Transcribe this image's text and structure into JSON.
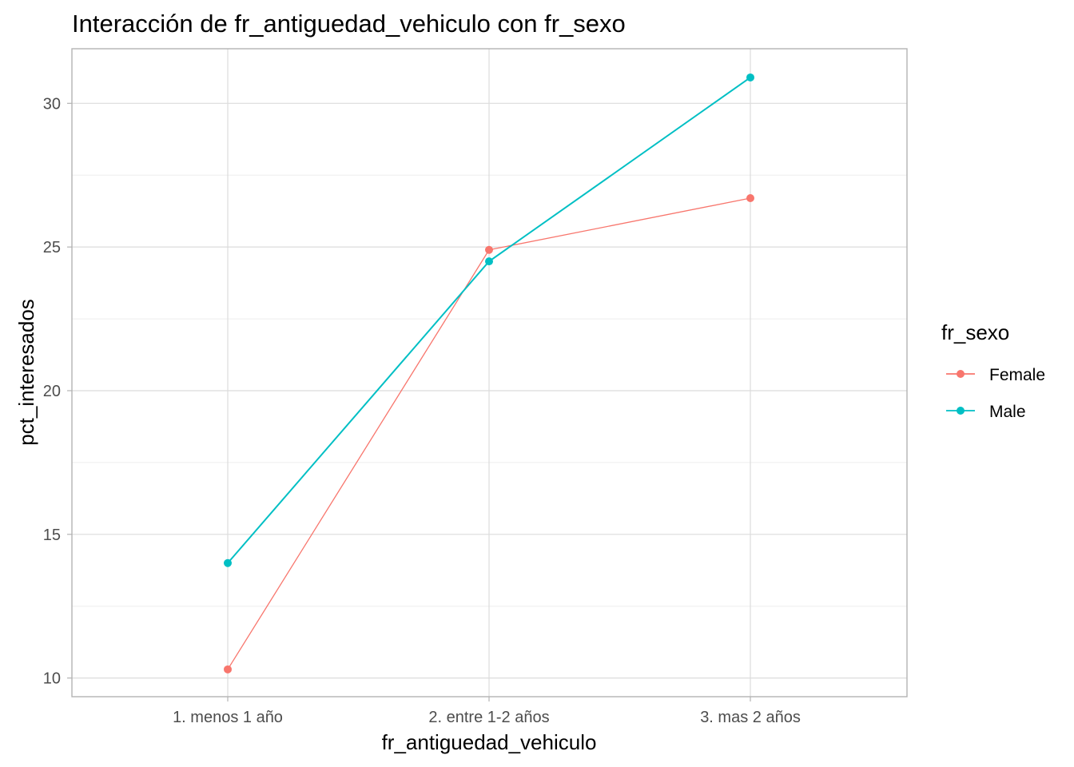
{
  "chart_data": {
    "type": "line",
    "title": "Interacción de fr_antiguedad_vehiculo con fr_sexo",
    "xlabel": "fr_antiguedad_vehiculo",
    "ylabel": "pct_interesados",
    "categories": [
      "1. menos 1 año",
      "2. entre 1-2 años",
      "3. mas 2 años"
    ],
    "yticks": [
      10,
      15,
      20,
      25,
      30
    ],
    "ylim": [
      9.35,
      31.9
    ],
    "grid": true,
    "legend": {
      "title": "fr_sexo",
      "position": "right"
    },
    "series": [
      {
        "name": "Female",
        "color": "#F8766D",
        "values": [
          10.3,
          24.9,
          26.7
        ]
      },
      {
        "name": "Male",
        "color": "#00BFC4",
        "values": [
          14.0,
          24.5,
          30.9
        ]
      }
    ]
  }
}
